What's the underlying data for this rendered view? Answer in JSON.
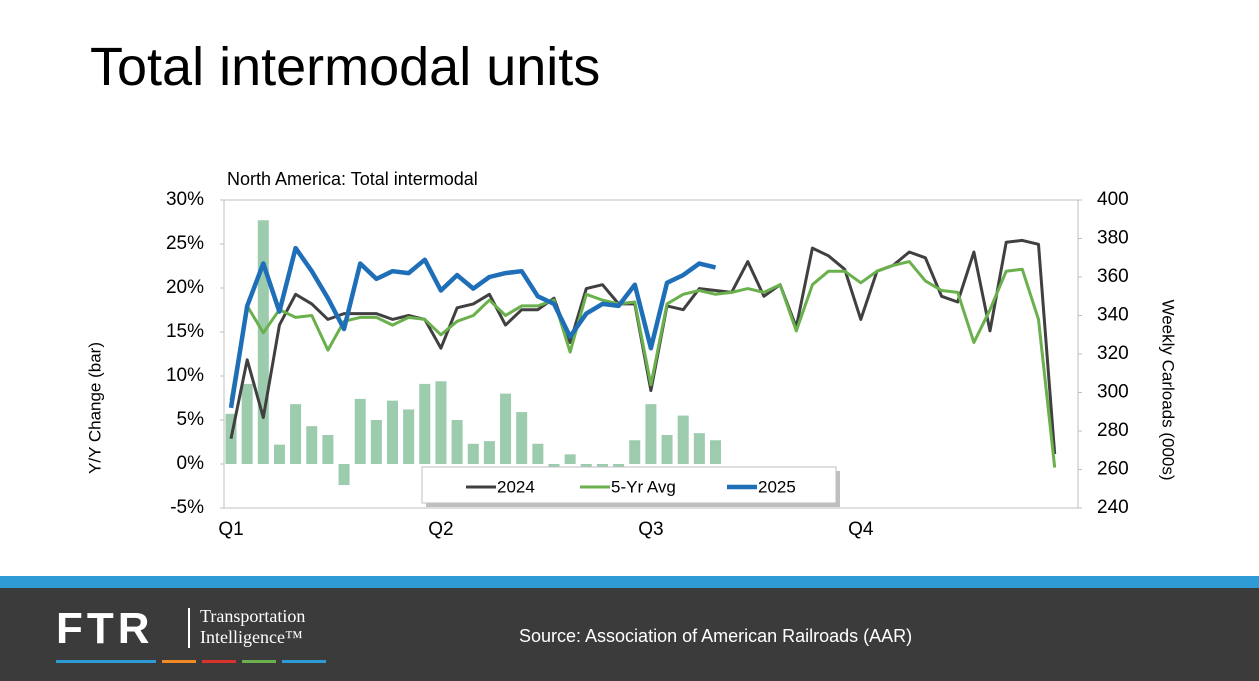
{
  "header": {
    "title": "Total intermodal units"
  },
  "chart_data": {
    "type": "bar-line",
    "title": "North America: Total intermodal",
    "ylabel": "Y/Y Change (bar)",
    "y2label": "Weekly Carloads (000s)",
    "categories": [
      "Q1",
      null,
      null,
      null,
      null,
      null,
      null,
      null,
      null,
      null,
      null,
      null,
      null,
      "Q2",
      null,
      null,
      null,
      null,
      null,
      null,
      null,
      null,
      null,
      null,
      null,
      null,
      "Q3",
      null,
      null,
      null,
      null,
      null,
      null,
      null,
      null,
      null,
      null,
      null,
      null,
      "Q4",
      null,
      null,
      null,
      null,
      null,
      null,
      null,
      null,
      null,
      null,
      null,
      null
    ],
    "ylim": [
      -5,
      30
    ],
    "yticks": [
      {
        "value": -5,
        "label": "-5%"
      },
      {
        "value": 0,
        "label": "0%"
      },
      {
        "value": 5,
        "label": "5%"
      },
      {
        "value": 10,
        "label": "10%"
      },
      {
        "value": 15,
        "label": "15%"
      },
      {
        "value": 20,
        "label": "20%"
      },
      {
        "value": 25,
        "label": "25%"
      },
      {
        "value": 30,
        "label": "30%"
      }
    ],
    "y2lim": [
      240,
      400
    ],
    "y2ticks": [
      240,
      260,
      280,
      300,
      320,
      340,
      360,
      380,
      400
    ],
    "bars": {
      "color": "#9ccbae",
      "values": [
        5.7,
        9.1,
        27.7,
        2.2,
        6.8,
        4.3,
        3.3,
        -2.4,
        7.4,
        5.0,
        7.2,
        6.2,
        9.1,
        9.4,
        5.0,
        2.3,
        2.6,
        8.0,
        5.9,
        2.3,
        -0.5,
        1.1,
        -0.4,
        -0.3,
        -0.4,
        2.7,
        6.8,
        3.3,
        5.5,
        3.5,
        2.7,
        null,
        null,
        null,
        null,
        null,
        null,
        null,
        null,
        null,
        null,
        null,
        null,
        null,
        null,
        null,
        null,
        null,
        null,
        null,
        null,
        null
      ]
    },
    "series": [
      {
        "name": "2024",
        "color": "#404040",
        "axis": "y2",
        "values": [
          276,
          317,
          287,
          335,
          351,
          346,
          338,
          341,
          341,
          341,
          338,
          340,
          338,
          323,
          344,
          346,
          351,
          335,
          343,
          343,
          349,
          326,
          354,
          356,
          346,
          346,
          301,
          345,
          343,
          354,
          353,
          352,
          368,
          350,
          356,
          334,
          375,
          371,
          364,
          338,
          363,
          366,
          373,
          370,
          350,
          347,
          373,
          332,
          378,
          379,
          377,
          268
        ]
      },
      {
        "name": "5-Yr Avg",
        "color": "#6ab04c",
        "axis": "y2",
        "values": [
          296,
          345,
          331,
          343,
          339,
          340,
          322,
          337,
          339,
          339,
          335,
          339,
          338,
          330,
          337,
          340,
          348,
          340,
          345,
          345,
          348,
          321,
          351,
          348,
          346,
          347,
          304,
          346,
          351,
          353,
          351,
          352,
          354,
          352,
          356,
          332,
          356,
          363,
          363,
          357,
          363,
          366,
          368,
          358,
          353,
          352,
          326,
          343,
          363,
          364,
          338,
          261
        ]
      },
      {
        "name": "2025",
        "color": "#1f6fb8",
        "axis": "y2",
        "values": [
          292,
          345,
          367,
          342,
          375,
          363,
          349,
          333,
          367,
          359,
          363,
          362,
          369,
          353,
          361,
          354,
          360,
          362,
          363,
          350,
          346,
          329,
          341,
          346,
          345,
          356,
          323,
          357,
          361,
          367,
          365,
          null,
          null,
          null,
          null,
          null,
          null,
          null,
          null,
          null,
          null,
          null,
          null,
          null,
          null,
          null,
          null,
          null,
          null,
          null,
          null,
          null
        ]
      }
    ],
    "legend": "lower center"
  },
  "footer": {
    "logo": "FTR",
    "tagline": [
      "Transportation",
      "Intelligence™"
    ],
    "source": "Source: Association of American Railroads (AAR)"
  }
}
